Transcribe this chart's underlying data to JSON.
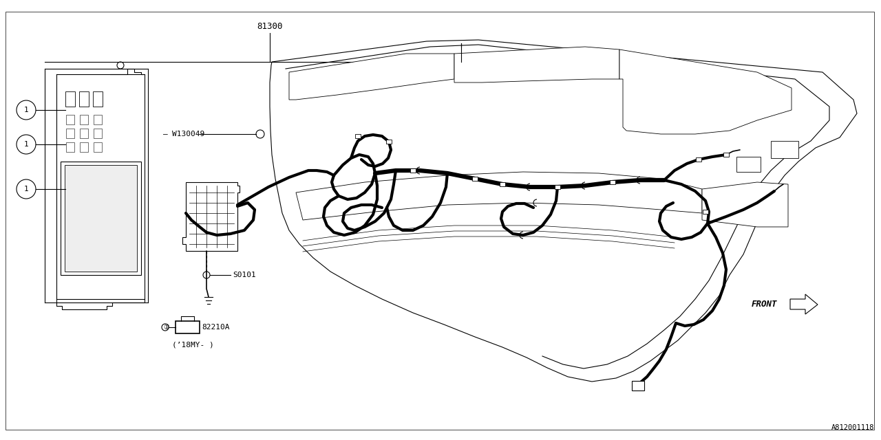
{
  "bg_color": "#ffffff",
  "line_color": "#000000",
  "part_number_main": "81300",
  "part_w130049": "W130049",
  "part_s0101": "S0101",
  "part_82210a": "82210A",
  "label_front": "FRONT",
  "label_18my": "(’18MY- )",
  "label_ref_1": "①",
  "diagram_id": "A812001118",
  "figsize": [
    12.8,
    6.4
  ],
  "dpi": 100
}
